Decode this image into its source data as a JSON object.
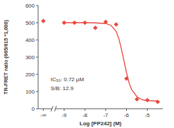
{
  "chart_data": {
    "type": "scatter",
    "x_label": "Log [PP242] (M)",
    "y_label": "TR-FRET ratio (665/615 *1,000)",
    "annotations": [
      "IC₅₀: 0.72 µM",
      "S/B: 12.9"
    ],
    "xlim": [
      -10.25,
      -4.25
    ],
    "ylim": [
      0,
      600
    ],
    "xticks": [
      {
        "value": -10,
        "label": "-∞"
      },
      -9,
      -8,
      -7,
      -6,
      -5
    ],
    "yticks": [
      0,
      100,
      200,
      300,
      400,
      500,
      600
    ],
    "grid": false,
    "series": [
      {
        "type": "scatter",
        "marker": "diamond",
        "color": "#e8473f",
        "x": [
          -10,
          -9,
          -8.5,
          -8,
          -7.5,
          -7,
          -6.5,
          -6,
          -5.5,
          -5,
          -4.5
        ],
        "values": [
          510,
          500,
          500,
          500,
          470,
          505,
          490,
          175,
          55,
          50,
          40
        ]
      },
      {
        "type": "line",
        "line_style": "solid",
        "color": "#e8473f",
        "x": [
          -9,
          -8,
          -7.5,
          -7,
          -6.75,
          -6.5,
          -6.375,
          -6.25,
          -6.125,
          -6,
          -5.875,
          -5.75,
          -5.5,
          -5.25,
          -5,
          -4.5
        ],
        "values": [
          500,
          500,
          499,
          495,
          485,
          450,
          410,
          350,
          280,
          210,
          150,
          110,
          70,
          52,
          47,
          45
        ]
      }
    ]
  }
}
